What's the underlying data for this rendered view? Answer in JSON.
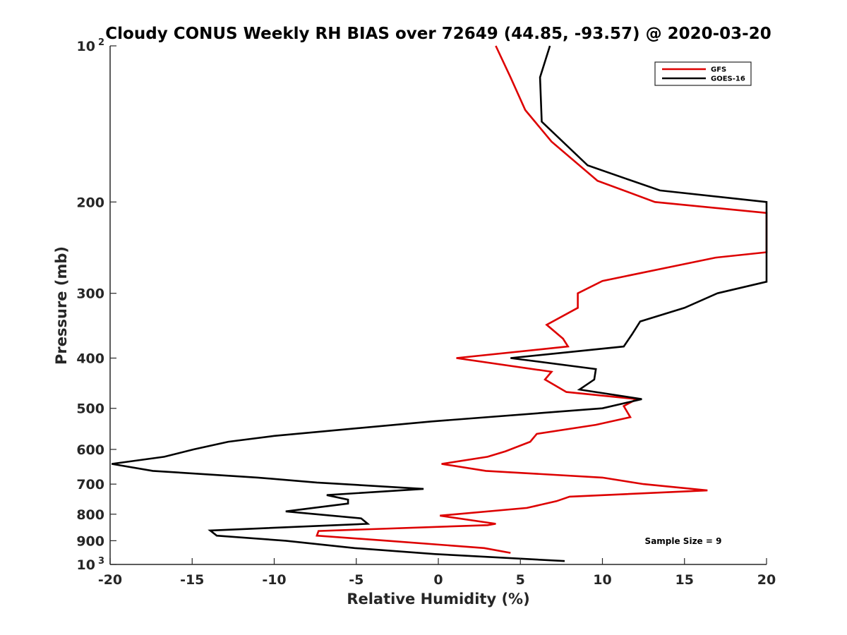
{
  "chart_data": {
    "type": "line",
    "title": "Cloudy CONUS Weekly RH BIAS over 72649 (44.85, -93.57) @ 2020-03-20",
    "xlabel": "Relative Humidity (%)",
    "ylabel": "Pressure (mb)",
    "xlim": [
      -20,
      20
    ],
    "ylim": [
      100,
      1000
    ],
    "y_scale": "log",
    "y_reversed": true,
    "x_ticks": [
      {
        "value": -20,
        "label": "-20"
      },
      {
        "value": -15,
        "label": "-15"
      },
      {
        "value": -10,
        "label": "-10"
      },
      {
        "value": -5,
        "label": "-5"
      },
      {
        "value": 0,
        "label": "0"
      },
      {
        "value": 5,
        "label": "5"
      },
      {
        "value": 10,
        "label": "10"
      },
      {
        "value": 15,
        "label": "15"
      },
      {
        "value": 20,
        "label": "20"
      }
    ],
    "y_ticks": [
      {
        "value": 100,
        "label": "10",
        "sup": "2"
      },
      {
        "value": 200,
        "label": "200"
      },
      {
        "value": 300,
        "label": "300"
      },
      {
        "value": 400,
        "label": "400"
      },
      {
        "value": 500,
        "label": "500"
      },
      {
        "value": 600,
        "label": "600"
      },
      {
        "value": 700,
        "label": "700"
      },
      {
        "value": 800,
        "label": "800"
      },
      {
        "value": 900,
        "label": "900"
      },
      {
        "value": 1000,
        "label": "10",
        "sup": "3"
      }
    ],
    "grid": false,
    "legend_position": "top-right",
    "annotation": "Sample Size = 9",
    "series": [
      {
        "name": "GFS",
        "color": "#dd0000",
        "points": [
          [
            3.5,
            100
          ],
          [
            4.4,
            115
          ],
          [
            5.3,
            133
          ],
          [
            6.9,
            153
          ],
          [
            9.7,
            182
          ],
          [
            13.2,
            200
          ],
          [
            20.0,
            210
          ],
          [
            20.0,
            250
          ],
          [
            16.9,
            256
          ],
          [
            10.0,
            284
          ],
          [
            8.5,
            300
          ],
          [
            8.5,
            320
          ],
          [
            6.6,
            345
          ],
          [
            7.6,
            367
          ],
          [
            7.9,
            380
          ],
          [
            1.1,
            400
          ],
          [
            6.9,
            425
          ],
          [
            6.5,
            440
          ],
          [
            7.8,
            465
          ],
          [
            12.1,
            480
          ],
          [
            11.3,
            495
          ],
          [
            11.7,
            520
          ],
          [
            9.6,
            538
          ],
          [
            6.0,
            560
          ],
          [
            5.6,
            580
          ],
          [
            4.1,
            605
          ],
          [
            3.0,
            620
          ],
          [
            0.2,
            640
          ],
          [
            2.9,
            660
          ],
          [
            10.0,
            680
          ],
          [
            12.5,
            700
          ],
          [
            16.4,
            720
          ],
          [
            8.0,
            740
          ],
          [
            7.2,
            755
          ],
          [
            5.4,
            778
          ],
          [
            0.1,
            805
          ],
          [
            3.5,
            835
          ],
          [
            3.0,
            840
          ],
          [
            -7.3,
            862
          ],
          [
            -7.4,
            880
          ],
          [
            -3.1,
            900
          ],
          [
            2.8,
            930
          ],
          [
            4.4,
            950
          ]
        ]
      },
      {
        "name": "GOES-16",
        "color": "#000000",
        "points": [
          [
            6.8,
            100
          ],
          [
            6.2,
            115
          ],
          [
            6.3,
            140
          ],
          [
            9.1,
            170
          ],
          [
            13.5,
            190
          ],
          [
            20.0,
            200
          ],
          [
            20.0,
            285
          ],
          [
            17.0,
            300
          ],
          [
            15.0,
            320
          ],
          [
            12.3,
            340
          ],
          [
            11.8,
            360
          ],
          [
            11.3,
            380
          ],
          [
            4.4,
            400
          ],
          [
            9.6,
            420
          ],
          [
            9.5,
            440
          ],
          [
            8.6,
            460
          ],
          [
            12.4,
            480
          ],
          [
            10.0,
            500
          ],
          [
            -0.4,
            530
          ],
          [
            -10.0,
            565
          ],
          [
            -12.8,
            580
          ],
          [
            -14.9,
            600
          ],
          [
            -16.7,
            620
          ],
          [
            -19.9,
            640
          ],
          [
            -17.4,
            660
          ],
          [
            -11.0,
            680
          ],
          [
            -7.4,
            695
          ],
          [
            -0.9,
            715
          ],
          [
            -6.8,
            735
          ],
          [
            -5.5,
            750
          ],
          [
            -5.5,
            763
          ],
          [
            -9.3,
            790
          ],
          [
            -4.7,
            815
          ],
          [
            -4.3,
            835
          ],
          [
            -13.9,
            860
          ],
          [
            -13.5,
            880
          ],
          [
            -9.3,
            900
          ],
          [
            -5.1,
            930
          ],
          [
            -0.2,
            955
          ],
          [
            7.7,
            985
          ]
        ]
      }
    ]
  }
}
